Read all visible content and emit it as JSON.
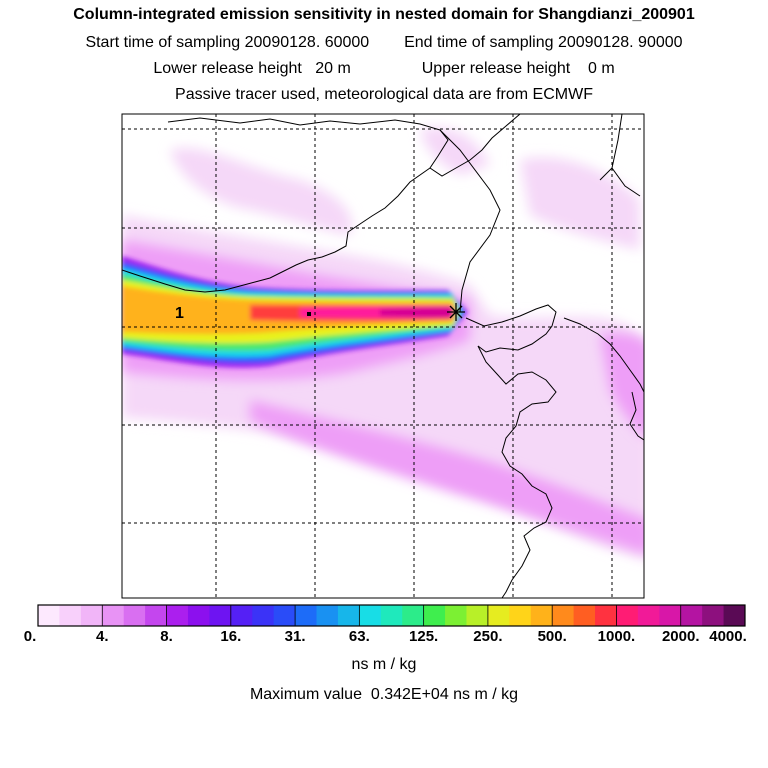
{
  "header": {
    "title": "Column-integrated emission sensitivity in nested domain for Shangdianzi_200901",
    "start_label": "Start time of sampling",
    "start_value": "20090128. 60000",
    "end_label": "End time of sampling",
    "end_value": "20090128. 90000",
    "lower_label": "Lower release height",
    "lower_value": "20 m",
    "upper_label": "Upper release height",
    "upper_value": "0 m",
    "note": "Passive tracer used, meteorological data are from ECMWF"
  },
  "map": {
    "marker_label": "1",
    "receptor": "Shangdianzi",
    "field_colors": {
      "faint": "#f5d8f8",
      "light": "#ee9ef7",
      "purple": "#9b1ef0",
      "blue": "#2a5cff",
      "cyan": "#19d6e8",
      "green": "#4de86a",
      "yellow": "#e8f21a",
      "orange": "#ffb21a",
      "red": "#ff3c3c",
      "magenta": "#ff1c9c",
      "deep": "#d40094"
    }
  },
  "colorbar": {
    "colors": [
      "#fde9fe",
      "#f8d0fb",
      "#f1b5f8",
      "#e893f5",
      "#d96ff1",
      "#c446ee",
      "#ab1fee",
      "#8c10ee",
      "#6e14f2",
      "#5520f5",
      "#3b33f7",
      "#2a4cf8",
      "#1d6cf8",
      "#1991f2",
      "#17b6ea",
      "#18dde6",
      "#1fe9bc",
      "#2cec8a",
      "#3fee4e",
      "#7cf033",
      "#b8f028",
      "#e6ec20",
      "#ffd419",
      "#ffb21a",
      "#ff8a1c",
      "#ff5e22",
      "#ff3240",
      "#ff1c74",
      "#f11a98",
      "#d817a8",
      "#b414a2",
      "#8d107e",
      "#5a0a55"
    ],
    "ticks": [
      "0.",
      "4.",
      "8.",
      "16.",
      "31.",
      "63.",
      "125.",
      "250.",
      "500.",
      "1000.",
      "2000.",
      "4000."
    ]
  },
  "footer": {
    "unit": "ns m / kg",
    "max_label": "Maximum value",
    "max_value": "0.342E+04 ns m / kg"
  }
}
